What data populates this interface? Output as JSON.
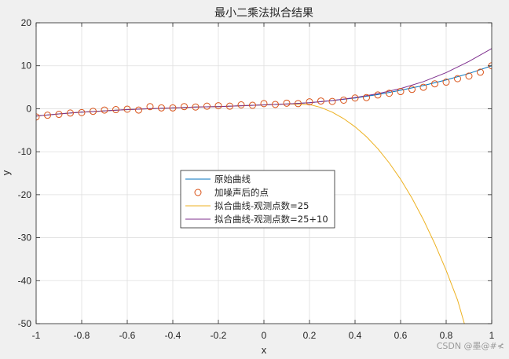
{
  "chart_data": {
    "type": "line",
    "title": "最小二乘法拟合结果",
    "xlabel": "x",
    "ylabel": "y",
    "xlim": [
      -1,
      1
    ],
    "ylim": [
      -50,
      20
    ],
    "xticks": [
      -1,
      -0.8,
      -0.6,
      -0.4,
      -0.2,
      0,
      0.2,
      0.4,
      0.6,
      0.8,
      1
    ],
    "xtick_labels": [
      "-1",
      "-0.8",
      "-0.6",
      "-0.4",
      "-0.2",
      "0",
      "0.2",
      "0.4",
      "0.6",
      "0.8",
      "1"
    ],
    "yticks": [
      -50,
      -40,
      -30,
      -20,
      -10,
      0,
      10,
      20
    ],
    "ytick_labels": [
      "-50",
      "-40",
      "-30",
      "-20",
      "-10",
      "0",
      "10",
      "20"
    ],
    "grid": true,
    "legend_position": "center-left",
    "series": [
      {
        "name": "原始曲线",
        "kind": "line",
        "color": "#0072bd",
        "x": [
          -1,
          -0.9,
          -0.8,
          -0.7,
          -0.6,
          -0.5,
          -0.4,
          -0.3,
          -0.2,
          -0.1,
          0,
          0.1,
          0.2,
          0.3,
          0.4,
          0.5,
          0.6,
          0.7,
          0.8,
          0.9,
          1
        ],
        "y": [
          -1.7,
          -1.2,
          -0.8,
          -0.5,
          -0.2,
          0.0,
          0.2,
          0.4,
          0.5,
          0.7,
          0.9,
          1.1,
          1.4,
          1.9,
          2.5,
          3.3,
          4.3,
          5.4,
          6.7,
          8.2,
          10.0
        ]
      },
      {
        "name": "加噪声后的点",
        "kind": "markers",
        "color": "#d95319",
        "x": [
          -1,
          -0.95,
          -0.9,
          -0.85,
          -0.8,
          -0.75,
          -0.7,
          -0.65,
          -0.6,
          -0.55,
          -0.5,
          -0.45,
          -0.4,
          -0.35,
          -0.3,
          -0.25,
          -0.2,
          -0.15,
          -0.1,
          -0.05,
          0,
          0.05,
          0.1,
          0.15,
          0.2,
          0.25,
          0.3,
          0.35,
          0.4,
          0.45,
          0.5,
          0.55,
          0.6,
          0.65,
          0.7,
          0.75,
          0.8,
          0.85,
          0.9,
          0.95,
          1
        ],
        "y": [
          -1.9,
          -1.5,
          -1.3,
          -1.0,
          -0.9,
          -0.6,
          -0.3,
          -0.2,
          -0.1,
          -0.3,
          0.5,
          0.2,
          0.2,
          0.5,
          0.4,
          0.6,
          0.7,
          0.6,
          0.9,
          0.8,
          1.2,
          1.0,
          1.3,
          1.2,
          1.6,
          1.8,
          1.7,
          2.0,
          2.5,
          2.6,
          3.2,
          3.6,
          4.0,
          4.5,
          5.0,
          5.8,
          6.2,
          7.0,
          7.6,
          8.5,
          10.0
        ]
      },
      {
        "name": "拟合曲线-观测点数=25",
        "kind": "line",
        "color": "#edb120",
        "x": [
          -1,
          -0.9,
          -0.8,
          -0.7,
          -0.6,
          -0.5,
          -0.4,
          -0.3,
          -0.2,
          -0.1,
          0,
          0.1,
          0.2,
          0.25,
          0.3,
          0.35,
          0.4,
          0.45,
          0.5,
          0.55,
          0.6,
          0.65,
          0.7,
          0.75,
          0.8,
          0.85,
          0.88
        ],
        "y": [
          -1.7,
          -1.2,
          -0.8,
          -0.5,
          -0.2,
          0.0,
          0.2,
          0.4,
          0.5,
          0.7,
          0.9,
          1.1,
          1.0,
          0.3,
          -0.8,
          -2.3,
          -4.2,
          -6.5,
          -9.3,
          -12.6,
          -16.4,
          -20.8,
          -25.8,
          -31.4,
          -37.6,
          -44.5,
          -50
        ]
      },
      {
        "name": "拟合曲线-观测点数=25+10",
        "kind": "line",
        "color": "#7e2f8e",
        "x": [
          -1,
          -0.9,
          -0.8,
          -0.7,
          -0.6,
          -0.5,
          -0.4,
          -0.3,
          -0.2,
          -0.1,
          0,
          0.1,
          0.2,
          0.3,
          0.4,
          0.5,
          0.6,
          0.7,
          0.8,
          0.9,
          1
        ],
        "y": [
          -1.7,
          -1.2,
          -0.8,
          -0.5,
          -0.2,
          0.0,
          0.2,
          0.4,
          0.5,
          0.7,
          0.9,
          1.1,
          1.4,
          1.9,
          2.6,
          3.5,
          4.7,
          6.3,
          8.4,
          11.0,
          14.0
        ]
      }
    ]
  },
  "watermark": "CSDN @墨@#≮"
}
